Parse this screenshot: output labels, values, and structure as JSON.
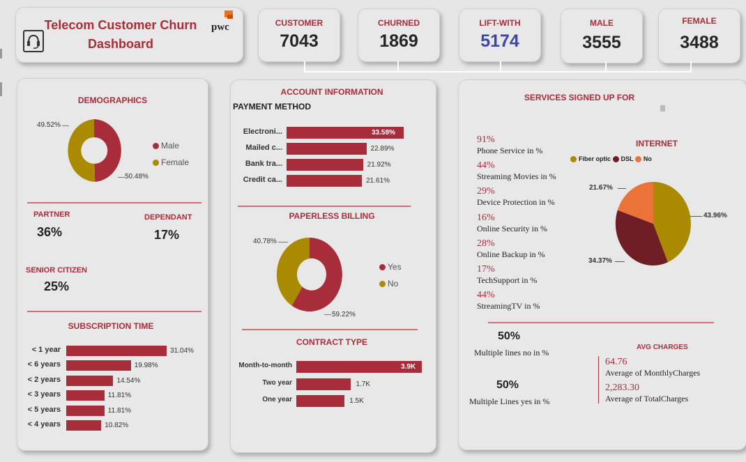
{
  "colors": {
    "accent": "#a72d3a",
    "gold": "#a98a00",
    "dark_red": "#6f1e25",
    "orange": "#ec7337",
    "blue": "#3c45a8"
  },
  "header": {
    "title_line1": "Telecom Customer Churn",
    "title_line2": "Dashboard",
    "logo": "pwc",
    "logo_icon": "headset-icon"
  },
  "kpis": [
    {
      "label": "CUSTOMER",
      "value": "7043"
    },
    {
      "label": "CHURNED",
      "value": "1869"
    },
    {
      "label": "LIFT-WITH",
      "value": "5174"
    },
    {
      "label": "MALE",
      "value": "3555"
    },
    {
      "label": "FEMALE",
      "value": "3488"
    }
  ],
  "demographics": {
    "title": "DEMOGRAPHICS",
    "legend": [
      "Male",
      "Female"
    ],
    "labels": {
      "female": "49.52%",
      "male": "50.48%"
    },
    "partner_label": "PARTNER",
    "partner_value": "36%",
    "dependant_label": "DEPENDANT",
    "dependant_value": "17%",
    "senior_label": "SENIOR CITIZEN",
    "senior_value": "25%"
  },
  "subscription": {
    "title": "SUBSCRIPTION TIME",
    "items": [
      {
        "label": "< 1 year",
        "value": "31.04%"
      },
      {
        "label": "< 6 years",
        "value": "19.98%"
      },
      {
        "label": "< 2 years",
        "value": "14.54%"
      },
      {
        "label": "< 3 years",
        "value": "11.81%"
      },
      {
        "label": "< 5 years",
        "value": "11.81%"
      },
      {
        "label": "< 4 years",
        "value": "10.82%"
      }
    ]
  },
  "account": {
    "title": "ACCOUNT INFORMATION",
    "payment_title": "PAYMENT METHOD",
    "payment": [
      {
        "label": "Electroni...",
        "value": "33.58%"
      },
      {
        "label": "Mailed c...",
        "value": "22.89%"
      },
      {
        "label": "Bank tra...",
        "value": "21.92%"
      },
      {
        "label": "Credit ca...",
        "value": "21.61%"
      }
    ],
    "paperless_title": "PAPERLESS BILLING",
    "paperless_legend": [
      "Yes",
      "No"
    ],
    "paperless_labels": {
      "no": "40.78%",
      "yes": "59.22%"
    },
    "contract_title": "CONTRACT TYPE",
    "contract": [
      {
        "label": "Month-to-month",
        "value": "3.9K"
      },
      {
        "label": "Two year",
        "value": "1.7K"
      },
      {
        "label": "One year",
        "value": "1.5K"
      }
    ]
  },
  "services": {
    "title": "SERVICES SIGNED UP FOR",
    "items": [
      {
        "pct": "91%",
        "label": "Phone Service in %"
      },
      {
        "pct": "44%",
        "label": "Streaming Movies in %"
      },
      {
        "pct": "29%",
        "label": "Device Protection in %"
      },
      {
        "pct": "16%",
        "label": "Online Security in %"
      },
      {
        "pct": "28%",
        "label": "Online Backup in %"
      },
      {
        "pct": "17%",
        "label": "TechSupport in %"
      },
      {
        "pct": "44%",
        "label": "StreamingTV in %"
      }
    ],
    "internet_title": "INTERNET",
    "internet_legend": [
      "Fiber optic",
      "DSL",
      "No"
    ],
    "internet_labels": {
      "no": "21.67%",
      "fiber": "43.96%",
      "dsl": "34.37%"
    },
    "multi_no_value": "50%",
    "multi_no_label": "Multiple lines no in %",
    "multi_yes_value": "50%",
    "multi_yes_label": "Multiple Lines yes in %",
    "avg_title": "AVG CHARGES",
    "avg_monthly_value": "64.76",
    "avg_monthly_label": "Average of MonthlyCharges",
    "avg_total_value": "2,283.30",
    "avg_total_label": "Average of TotalCharges"
  },
  "chart_data": [
    {
      "type": "pie",
      "title": "DEMOGRAPHICS",
      "categories": [
        "Male",
        "Female"
      ],
      "values": [
        50.48,
        49.52
      ]
    },
    {
      "type": "bar",
      "title": "SUBSCRIPTION TIME",
      "categories": [
        "< 1 year",
        "< 6 years",
        "< 2 years",
        "< 3 years",
        "< 5 years",
        "< 4 years"
      ],
      "values": [
        31.04,
        19.98,
        14.54,
        11.81,
        11.81,
        10.82
      ],
      "orientation": "horizontal"
    },
    {
      "type": "bar",
      "title": "PAYMENT METHOD",
      "categories": [
        "Electroni...",
        "Mailed c...",
        "Bank tra...",
        "Credit ca..."
      ],
      "values": [
        33.58,
        22.89,
        21.92,
        21.61
      ],
      "orientation": "horizontal"
    },
    {
      "type": "pie",
      "title": "PAPERLESS BILLING",
      "categories": [
        "Yes",
        "No"
      ],
      "values": [
        59.22,
        40.78
      ]
    },
    {
      "type": "bar",
      "title": "CONTRACT TYPE",
      "categories": [
        "Month-to-month",
        "Two year",
        "One year"
      ],
      "values": [
        3.9,
        1.7,
        1.5
      ],
      "unit": "K",
      "orientation": "horizontal"
    },
    {
      "type": "pie",
      "title": "INTERNET",
      "categories": [
        "Fiber optic",
        "DSL",
        "No"
      ],
      "values": [
        43.96,
        34.37,
        21.67
      ]
    }
  ]
}
